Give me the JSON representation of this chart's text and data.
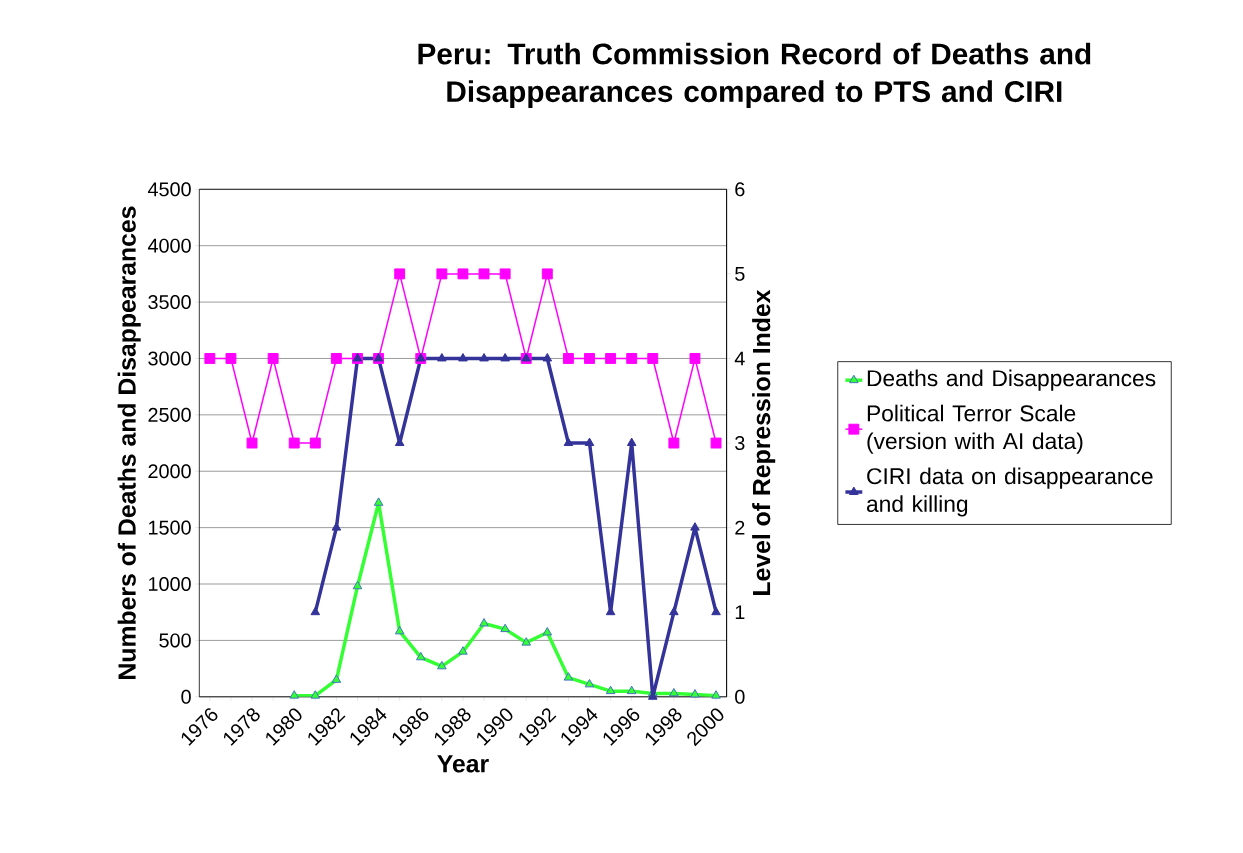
{
  "chart_data": {
    "type": "line",
    "title": "Peru: Truth Commission Record of Deaths and Disappearances compared to PTS and CIRI",
    "xlabel": "Year",
    "ylabel": "Numbers of Deaths and Disappearances",
    "y2label": "Level of Repression Index",
    "categories": [
      "1976",
      null,
      "1978",
      null,
      "1980",
      null,
      "1982",
      null,
      "1984",
      null,
      "1986",
      null,
      "1988",
      null,
      "1990",
      null,
      "1992",
      null,
      "1994",
      null,
      "1996",
      null,
      "1998",
      null,
      "2000"
    ],
    "ylim": [
      0,
      4500
    ],
    "yticks": [
      0,
      500,
      1000,
      1500,
      2000,
      2500,
      3000,
      3500,
      4000,
      4500
    ],
    "y2lim": [
      0,
      6
    ],
    "y2ticks": [
      0,
      1,
      2,
      3,
      4,
      5,
      6
    ],
    "grid": "y",
    "legend": "right",
    "series": [
      {
        "name": "Deaths and Disappearances",
        "color": "#33ff33",
        "marker": "triangle",
        "values": [
          null,
          null,
          null,
          null,
          10,
          10,
          150,
          980,
          1720,
          580,
          350,
          270,
          400,
          650,
          600,
          480,
          570,
          170,
          110,
          50,
          50,
          30,
          30,
          20,
          10
        ]
      },
      {
        "name": "Political Terror Scale (version with AI data)",
        "color": "#ff00ff",
        "marker": "square",
        "axis": "y2",
        "values": [
          4,
          4,
          3,
          4,
          3,
          3,
          4,
          4,
          4,
          5,
          4,
          5,
          5,
          5,
          5,
          4,
          5,
          4,
          4,
          4,
          4,
          4,
          3,
          4,
          3
        ]
      },
      {
        "name": "CIRI data on disappearance and killing",
        "color": "#333399",
        "marker": "triangle",
        "axis": "y2",
        "values": [
          null,
          null,
          null,
          null,
          null,
          1,
          2,
          4,
          4,
          3,
          4,
          4,
          4,
          4,
          4,
          4,
          4,
          3,
          3,
          1,
          3,
          0,
          1,
          2,
          1
        ]
      }
    ]
  }
}
